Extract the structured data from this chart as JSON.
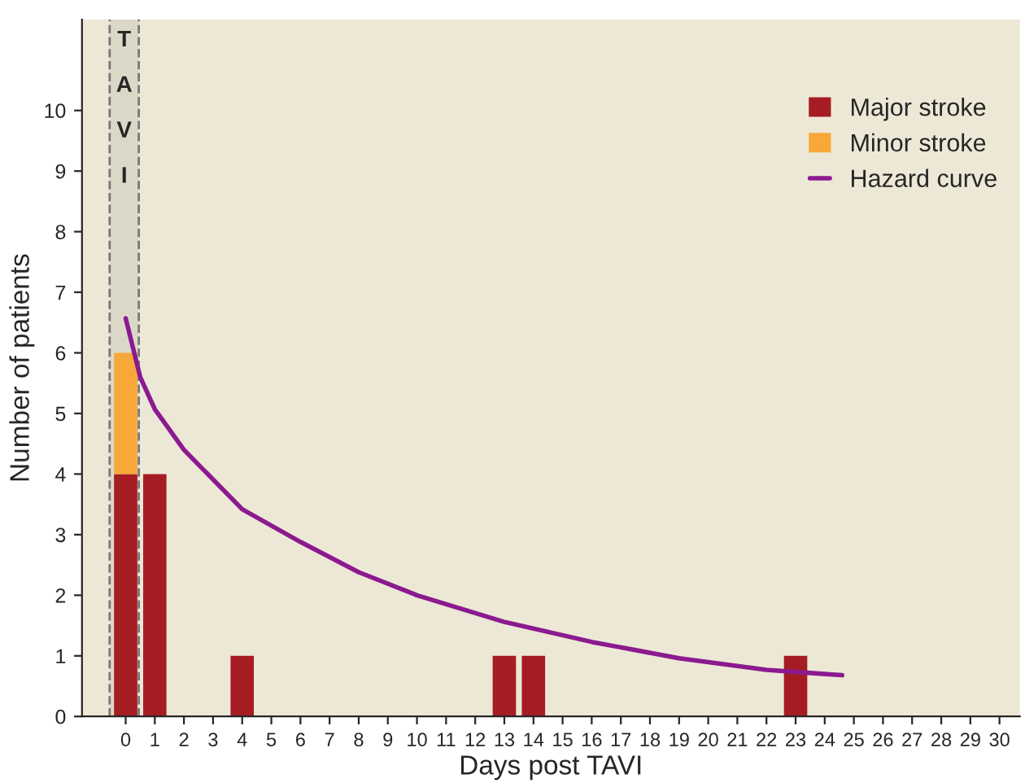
{
  "chart_data": {
    "type": "bar",
    "stacked": true,
    "xlabel": "Days post TAVI",
    "ylabel": "Number of patients",
    "x": [
      0,
      1,
      4,
      13,
      14,
      23
    ],
    "series": [
      {
        "name": "Major stroke",
        "color": "#a51d23",
        "values": [
          4,
          4,
          1,
          1,
          1,
          1
        ]
      },
      {
        "name": "Minor stroke",
        "color": "#f7a839",
        "values": [
          2,
          0,
          0,
          0,
          0,
          0
        ]
      },
      {
        "name": "Hazard curve",
        "type": "line",
        "color": "#8b1a8f",
        "x": [
          0,
          0.5,
          1,
          2,
          4,
          6,
          8,
          10,
          13,
          16,
          19,
          22,
          24.6
        ],
        "values": [
          6.57,
          5.6,
          5.07,
          4.4,
          3.42,
          2.88,
          2.38,
          2.0,
          1.56,
          1.23,
          0.96,
          0.77,
          0.68
        ]
      }
    ],
    "bands": [
      {
        "axis": "x",
        "from": -0.55,
        "to": 0.45,
        "label": "TAVI",
        "color": "#dcd8c8"
      }
    ],
    "ref_lines": [
      {
        "axis": "x",
        "value": -0.55,
        "color": "#777777",
        "line_style": "dashed"
      },
      {
        "axis": "x",
        "value": 0.45,
        "color": "#777777",
        "line_style": "dashed"
      }
    ],
    "xlim": [
      -1.5,
      30.7
    ],
    "xticks": [
      0,
      1,
      2,
      3,
      4,
      5,
      6,
      7,
      8,
      9,
      10,
      11,
      12,
      13,
      14,
      15,
      16,
      17,
      18,
      19,
      20,
      21,
      22,
      23,
      24,
      25,
      26,
      27,
      28,
      29,
      30
    ],
    "ylim": [
      0,
      11.5
    ],
    "yticks": [
      0,
      1,
      2,
      3,
      4,
      5,
      6,
      7,
      8,
      9,
      10
    ],
    "grid": false,
    "legend": "top right"
  }
}
